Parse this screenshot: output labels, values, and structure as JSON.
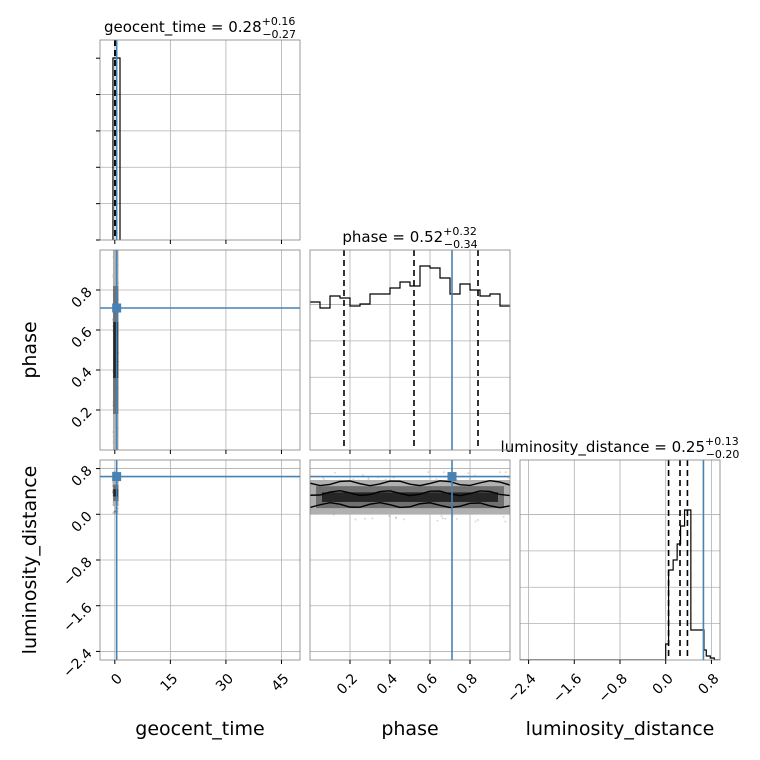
{
  "chart_data": {
    "type": "corner",
    "parameters": [
      "geocent_time",
      "phase",
      "luminosity_distance"
    ],
    "truths": {
      "geocent_time": 0.5,
      "phase": 0.71,
      "luminosity_distance": 0.66
    },
    "truth_color": "#4682b4",
    "grid": true,
    "titles": [
      {
        "param": "geocent_time",
        "prefix": "geocent_time = ",
        "median": "0.28",
        "plus": "+0.16",
        "minus": "−0.27"
      },
      {
        "param": "phase",
        "prefix": "phase = ",
        "median": "0.52",
        "plus": "+0.32",
        "minus": "−0.34"
      },
      {
        "param": "luminosity_distance",
        "prefix": "luminosity_distance = ",
        "median": "0.25",
        "plus": "+0.13",
        "minus": "−0.20"
      }
    ],
    "axes": {
      "geocent_time": {
        "range": [
          -4,
          50
        ],
        "ticks": [
          0,
          15,
          30,
          45
        ],
        "tick_labels": [
          "0",
          "15",
          "30",
          "45"
        ],
        "label": "geocent_time"
      },
      "phase": {
        "range": [
          0.0,
          1.0
        ],
        "ticks": [
          0.2,
          0.4,
          0.6,
          0.8
        ],
        "tick_labels": [
          "0.2",
          "0.4",
          "0.6",
          "0.8"
        ],
        "label": "phase"
      },
      "luminosity_distance": {
        "range": [
          -2.55,
          0.95
        ],
        "ticks": [
          -2.4,
          -1.6,
          -0.8,
          0.0,
          0.8
        ],
        "tick_labels": [
          "−2.4",
          "−1.6",
          "−0.8",
          "0.0",
          "0.8"
        ],
        "label": "luminosity_distance"
      }
    },
    "histograms": {
      "geocent_time": {
        "bins": [
          [
            -0.5,
            1.4
          ]
        ],
        "quantiles": [
          0.01,
          0.28,
          0.44
        ]
      },
      "phase": {
        "edges": [
          0.0,
          0.05,
          0.1,
          0.15,
          0.2,
          0.25,
          0.3,
          0.35,
          0.4,
          0.45,
          0.5,
          0.55,
          0.6,
          0.65,
          0.7,
          0.75,
          0.8,
          0.85,
          0.9,
          0.95,
          1.0
        ],
        "heights": [
          0.74,
          0.71,
          0.77,
          0.76,
          0.72,
          0.73,
          0.78,
          0.78,
          0.81,
          0.84,
          0.82,
          0.92,
          0.91,
          0.86,
          0.78,
          0.83,
          0.8,
          0.77,
          0.78,
          0.72
        ],
        "quantiles": [
          0.17,
          0.52,
          0.84
        ]
      },
      "luminosity_distance": {
        "edges": [
          -2.55,
          0.0,
          0.05,
          0.13,
          0.2,
          0.26,
          0.33,
          0.44,
          0.67,
          0.71,
          0.78,
          0.85,
          0.95
        ],
        "heights": [
          0.0,
          0.08,
          0.45,
          0.5,
          0.58,
          0.67,
          0.75,
          0.15,
          0.05,
          0.02,
          0.01,
          0.0
        ],
        "quantiles": [
          0.05,
          0.25,
          0.38
        ]
      }
    },
    "hist2d": {
      "phase_vs_geocent_time": {
        "x_band": [
          -0.5,
          1.0
        ],
        "y_band": [
          0.0,
          1.0
        ]
      },
      "luminosity_distance_vs_geocent_time": {
        "x_band": [
          -0.5,
          1.0
        ],
        "y_band": [
          0.15,
          0.6
        ]
      },
      "luminosity_distance_vs_phase": {
        "x_band": [
          0.0,
          1.0
        ],
        "y_band": [
          0.0,
          0.6
        ]
      }
    }
  }
}
